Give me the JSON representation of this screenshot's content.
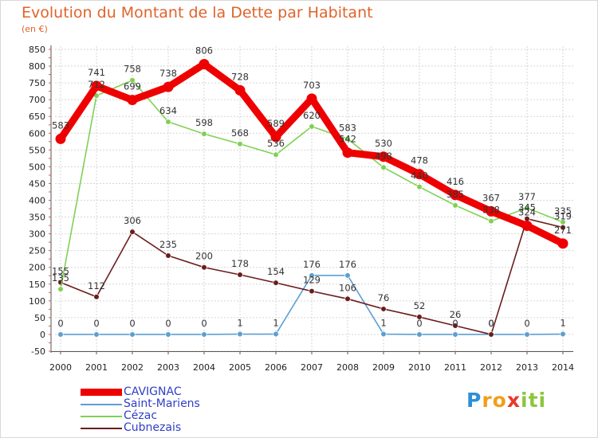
{
  "chart_data": {
    "type": "line",
    "title": "Evolution du Montant de la Dette par Habitant",
    "subtitle": "(en €)",
    "xlabel": "",
    "ylabel": "",
    "ylim": [
      -50,
      850
    ],
    "yticks": [
      "-50",
      "0",
      "50",
      "100",
      "150",
      "200",
      "250",
      "300",
      "350",
      "400",
      "450",
      "500",
      "550",
      "600",
      "650",
      "700",
      "750",
      "800",
      "850"
    ],
    "categories": [
      "2000",
      "2001",
      "2002",
      "2003",
      "2004",
      "2005",
      "2006",
      "2007",
      "2008",
      "2009",
      "2010",
      "2011",
      "2012",
      "2013",
      "2014"
    ],
    "grid": true,
    "series": [
      {
        "name": "CAVIGNAC",
        "color": "#ee0000",
        "values": [
          583,
          741,
          699,
          738,
          806,
          728,
          589,
          703,
          542,
          530,
          478,
          416,
          367,
          324,
          271
        ],
        "labels": [
          "583",
          "741",
          "699",
          "738",
          "806",
          "728",
          "589",
          "703",
          "542",
          "530",
          "478",
          "416",
          "367",
          "324",
          "271"
        ]
      },
      {
        "name": "Saint-Mariens",
        "color": "#5d9fd0",
        "values": [
          0,
          0,
          0,
          0,
          0,
          1,
          1,
          176,
          176,
          1,
          0,
          0,
          0,
          0,
          1
        ],
        "labels": [
          "0",
          "0",
          "0",
          "0",
          "0",
          "1",
          "1",
          "176",
          "176",
          "1",
          "0",
          "0",
          "0",
          "0",
          "1"
        ]
      },
      {
        "name": "Cézac",
        "color": "#7fd154",
        "values": [
          135,
          712,
          758,
          634,
          598,
          568,
          536,
          620,
          583,
          498,
          440,
          385,
          338,
          377,
          335
        ],
        "labels": [
          "135",
          "712",
          "758",
          "634",
          "598",
          "568",
          "536",
          "620",
          "583",
          "498",
          "440",
          "385",
          "338",
          "377",
          "335"
        ]
      },
      {
        "name": "Cubnezais",
        "color": "#6b1c1c",
        "values": [
          155,
          112,
          306,
          235,
          200,
          178,
          154,
          129,
          106,
          76,
          52,
          26,
          0,
          345,
          319
        ],
        "labels": [
          "155",
          "112",
          "306",
          "235",
          "200",
          "178",
          "154",
          "129",
          "106",
          "76",
          "52",
          "26",
          "0",
          "345",
          "319"
        ]
      }
    ]
  },
  "brand": {
    "letters": [
      "P",
      "r",
      "o",
      "x",
      "i",
      "t",
      "i"
    ],
    "colors": [
      "#2d8fd8",
      "#f29e1c",
      "#f29e1c",
      "#e63a2a",
      "#8cc63f",
      "#8cc63f",
      "#8cc63f"
    ]
  }
}
